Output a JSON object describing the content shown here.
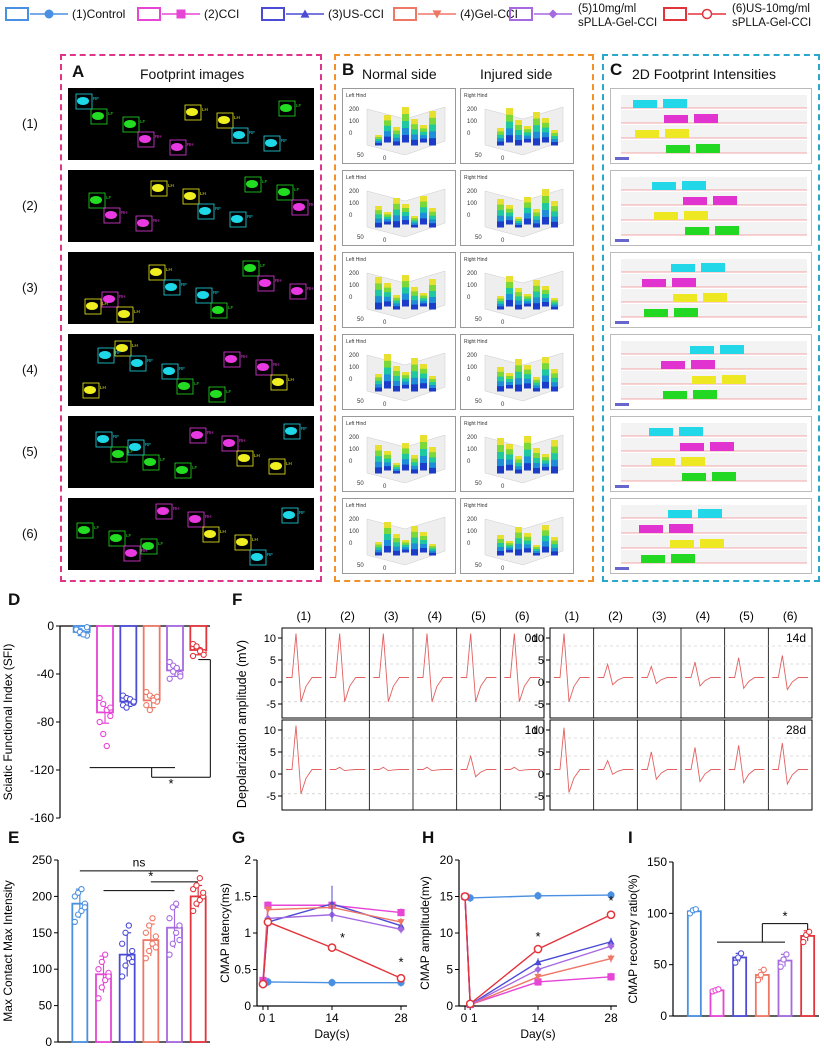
{
  "legend": [
    {
      "label": "(1)Control",
      "color": "#4A90E2",
      "marker": "circle"
    },
    {
      "label": "(2)CCI",
      "color": "#E645D6",
      "marker": "square"
    },
    {
      "label": "(3)US-CCI",
      "color": "#4B4BD6",
      "marker": "triangle-up"
    },
    {
      "label": "(4)Gel-CCI",
      "color": "#EE7766",
      "marker": "triangle-down"
    },
    {
      "label": "(5)10mg/ml sPLLA-Gel-CCI",
      "label_lines": [
        "(5)10mg/ml",
        "sPLLA-Gel-CCI"
      ],
      "color": "#A569E0",
      "marker": "diamond"
    },
    {
      "label": "(6)US-10mg/ml sPLLA-Gel-CCI",
      "label_lines": [
        "(6)US-10mg/ml",
        "sPLLA-Gel-CCI"
      ],
      "color": "#E3343C",
      "marker": "open-circle"
    }
  ],
  "panels": {
    "A": {
      "letter": "A",
      "title": "Footprint images",
      "rows": [
        "(1)",
        "(2)",
        "(3)",
        "(4)",
        "(5)",
        "(6)"
      ],
      "paw_labels": [
        "RF",
        "LF",
        "RH",
        "LH"
      ]
    },
    "B": {
      "letter": "B",
      "col1": "Normal side",
      "col2": "Injured side",
      "left_tag": "Left Hind",
      "right_tag": "Right Hind",
      "z_ticks": [
        "200",
        "100",
        "0"
      ],
      "axis_ticks": [
        "50",
        "0"
      ]
    },
    "C": {
      "letter": "C",
      "title": "2D Footprint Intensities"
    },
    "D": {
      "letter": "D"
    },
    "E": {
      "letter": "E"
    },
    "F": {
      "letter": "F",
      "group_cols": [
        "(1)",
        "(2)",
        "(3)",
        "(4)",
        "(5)",
        "(6)"
      ],
      "times": [
        "0d",
        "1d",
        "14d",
        "28d"
      ],
      "ylabel": "Depolarization amplitude (mV)",
      "ticks": [
        "10",
        "5",
        "0",
        "-5"
      ]
    },
    "G": {
      "letter": "G"
    },
    "H": {
      "letter": "H"
    },
    "I": {
      "letter": "I"
    }
  },
  "chart_data": [
    {
      "id": "D",
      "type": "bar",
      "ylabel": "Sciatic Functional Index (SFI)",
      "ylim": [
        -160,
        0
      ],
      "yticks": [
        0,
        -40,
        -80,
        -120,
        -160
      ],
      "categories": [
        "(1)",
        "(2)",
        "(3)",
        "(4)",
        "(5)",
        "(6)"
      ],
      "values": [
        -5,
        -72,
        -63,
        -62,
        -37,
        -20
      ],
      "errors": [
        3,
        9,
        4,
        6,
        5,
        4
      ],
      "points": [
        [
          -2,
          -4,
          -6,
          -8,
          -3,
          -5,
          -7,
          -1
        ],
        [
          -60,
          -65,
          -70,
          -75,
          -80,
          -90,
          -100,
          -68
        ],
        [
          -58,
          -60,
          -62,
          -64,
          -66,
          -68,
          -61,
          -63
        ],
        [
          -55,
          -58,
          -60,
          -63,
          -66,
          -70,
          -62,
          -59
        ],
        [
          -30,
          -33,
          -36,
          -40,
          -44,
          -38,
          -35,
          -42
        ],
        [
          -15,
          -18,
          -20,
          -22,
          -25,
          -17,
          -21,
          -24
        ]
      ],
      "annotation": "*"
    },
    {
      "id": "E",
      "type": "bar",
      "ylabel": "Max Contact Max Intensity",
      "ylim": [
        0,
        250
      ],
      "yticks": [
        0,
        50,
        100,
        150,
        200,
        250
      ],
      "categories": [
        "(1)",
        "(2)",
        "(3)",
        "(4)",
        "(5)",
        "(6)"
      ],
      "values": [
        190,
        93,
        120,
        140,
        157,
        200
      ],
      "errors": [
        20,
        25,
        30,
        22,
        28,
        15
      ],
      "points": [
        [
          165,
          175,
          180,
          190,
          200,
          205,
          210,
          185
        ],
        [
          60,
          75,
          85,
          95,
          100,
          110,
          120,
          90
        ],
        [
          90,
          105,
          115,
          125,
          135,
          150,
          160,
          110
        ],
        [
          115,
          125,
          135,
          145,
          150,
          160,
          170,
          130
        ],
        [
          120,
          135,
          150,
          160,
          170,
          185,
          190,
          140
        ],
        [
          180,
          190,
          195,
          200,
          210,
          215,
          225,
          205
        ]
      ],
      "annotations": [
        "ns",
        "*"
      ]
    },
    {
      "id": "G",
      "type": "line",
      "xlabel": "Day(s)",
      "ylabel": "CMAP latency(ms)",
      "x": [
        0,
        1,
        14,
        28
      ],
      "xticks": [
        "0",
        "1",
        "14",
        "28"
      ],
      "ylim": [
        0,
        2.0
      ],
      "yticks": [
        0,
        0.5,
        1.0,
        1.5,
        2.0
      ],
      "series": [
        {
          "color": "#4A90E2",
          "marker": "circle",
          "values": [
            0.3,
            0.33,
            0.32,
            0.32
          ]
        },
        {
          "color": "#E645D6",
          "marker": "square",
          "values": [
            0.35,
            1.38,
            1.38,
            1.28
          ]
        },
        {
          "color": "#4B4BD6",
          "marker": "triangle-up",
          "values": [
            0.3,
            1.15,
            1.4,
            1.1
          ]
        },
        {
          "color": "#EE7766",
          "marker": "triangle-down",
          "values": [
            0.3,
            1.32,
            1.35,
            1.15
          ]
        },
        {
          "color": "#A569E0",
          "marker": "diamond",
          "values": [
            0.3,
            1.2,
            1.25,
            1.05
          ]
        },
        {
          "color": "#E3343C",
          "marker": "open-circle",
          "values": [
            0.3,
            1.15,
            0.8,
            0.38
          ]
        }
      ],
      "annotations": [
        "*",
        "*"
      ]
    },
    {
      "id": "H",
      "type": "line",
      "xlabel": "Day(s)",
      "ylabel": "CMAP amplitude(mv)",
      "x": [
        0,
        1,
        14,
        28
      ],
      "xticks": [
        "0",
        "1",
        "14",
        "28"
      ],
      "ylim": [
        0,
        20
      ],
      "yticks": [
        0,
        5,
        10,
        15,
        20
      ],
      "series": [
        {
          "color": "#4A90E2",
          "marker": "circle",
          "values": [
            15.0,
            14.8,
            15.1,
            15.2
          ]
        },
        {
          "color": "#E645D6",
          "marker": "square",
          "values": [
            15.0,
            0.2,
            3.3,
            4.0
          ]
        },
        {
          "color": "#4B4BD6",
          "marker": "triangle-up",
          "values": [
            15.0,
            0.2,
            6.0,
            8.8
          ]
        },
        {
          "color": "#EE7766",
          "marker": "triangle-down",
          "values": [
            15.0,
            0.2,
            4.0,
            6.5
          ]
        },
        {
          "color": "#A569E0",
          "marker": "diamond",
          "values": [
            15.0,
            0.2,
            5.0,
            8.2
          ]
        },
        {
          "color": "#E3343C",
          "marker": "open-circle",
          "values": [
            15.0,
            0.3,
            7.8,
            12.5
          ]
        }
      ],
      "annotations": [
        "*",
        "*"
      ]
    },
    {
      "id": "I",
      "type": "bar",
      "ylabel": "CMAP recovery ratio(%)",
      "ylim": [
        0,
        150
      ],
      "yticks": [
        0,
        50,
        100,
        150
      ],
      "categories": [
        "(1)",
        "(2)",
        "(3)",
        "(4)",
        "(5)",
        "(6)"
      ],
      "values": [
        102,
        25,
        57,
        40,
        54,
        78
      ],
      "errors": [
        2,
        1,
        4,
        5,
        6,
        5
      ],
      "points": [
        [
          100,
          103,
          104
        ],
        [
          24,
          25,
          26
        ],
        [
          52,
          57,
          61
        ],
        [
          35,
          40,
          45
        ],
        [
          48,
          55,
          60
        ],
        [
          72,
          79,
          82
        ]
      ],
      "annotation": "*"
    }
  ]
}
